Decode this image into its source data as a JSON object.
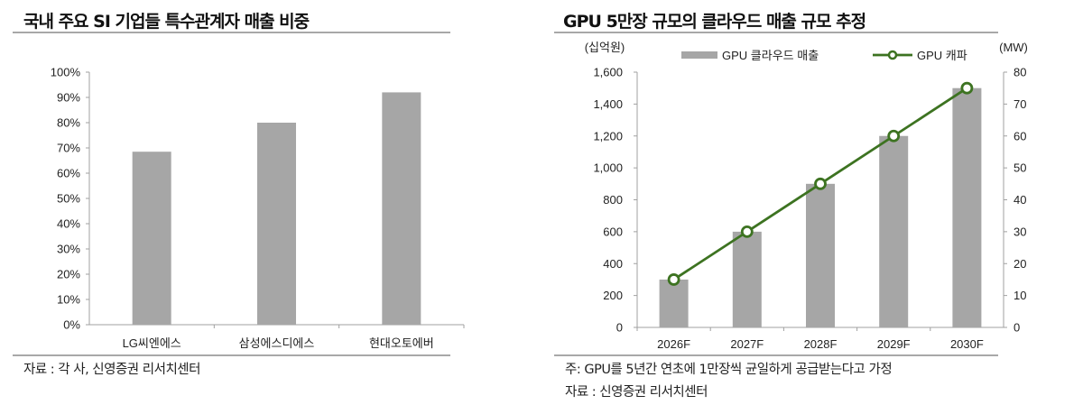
{
  "left_panel": {
    "title": "국내 주요 SI 기업들 특수관계자 매출 비중",
    "source": "자료 : 각 사, 신영증권 리서치센터"
  },
  "right_panel": {
    "title": "GPU 5만장 규모의 클라우드 매출 규모 추정",
    "note": "주: GPU를 5년간 연초에 1만장씩 균일하게 공급받는다고 가정",
    "source": "자료 : 신영증권 리서치센터"
  },
  "colors": {
    "bar": "#a6a6a6",
    "line": "#3d7321",
    "axis": "#a0a0a0",
    "rule": "#a8a8a8"
  },
  "chart_data": [
    {
      "type": "bar",
      "title": "국내 주요 SI 기업들 특수관계자 매출 비중",
      "categories": [
        "LG씨엔에스",
        "삼성에스디에스",
        "현대오토에버"
      ],
      "values": [
        68.5,
        80,
        92
      ],
      "ylabel": "",
      "xlabel": "",
      "ylim": [
        0,
        100
      ],
      "yticks": [
        "0%",
        "10%",
        "20%",
        "30%",
        "40%",
        "50%",
        "60%",
        "70%",
        "80%",
        "90%",
        "100%"
      ],
      "grid": false,
      "legend": false
    },
    {
      "type": "bar+line",
      "title": "GPU 5만장 규모의 클라우드 매출 규모 추정",
      "categories": [
        "2026F",
        "2027F",
        "2028F",
        "2029F",
        "2030F"
      ],
      "series": [
        {
          "name": "GPU 클라우드 매출",
          "type": "bar",
          "axis": "left",
          "values": [
            300,
            600,
            900,
            1200,
            1500
          ]
        },
        {
          "name": "GPU 캐파",
          "type": "line",
          "axis": "right",
          "values": [
            15,
            30,
            45,
            60,
            75
          ]
        }
      ],
      "ylabel_left": "(십억원)",
      "ylabel_right": "(MW)",
      "ylim_left": [
        0,
        1600
      ],
      "ylim_right": [
        0,
        80
      ],
      "yticks_left": [
        "0",
        "200",
        "400",
        "600",
        "800",
        "1,000",
        "1,200",
        "1,400",
        "1,600"
      ],
      "yticks_right": [
        "0",
        "10",
        "20",
        "30",
        "40",
        "50",
        "60",
        "70",
        "80"
      ],
      "legend_position": "top",
      "grid": false
    }
  ]
}
